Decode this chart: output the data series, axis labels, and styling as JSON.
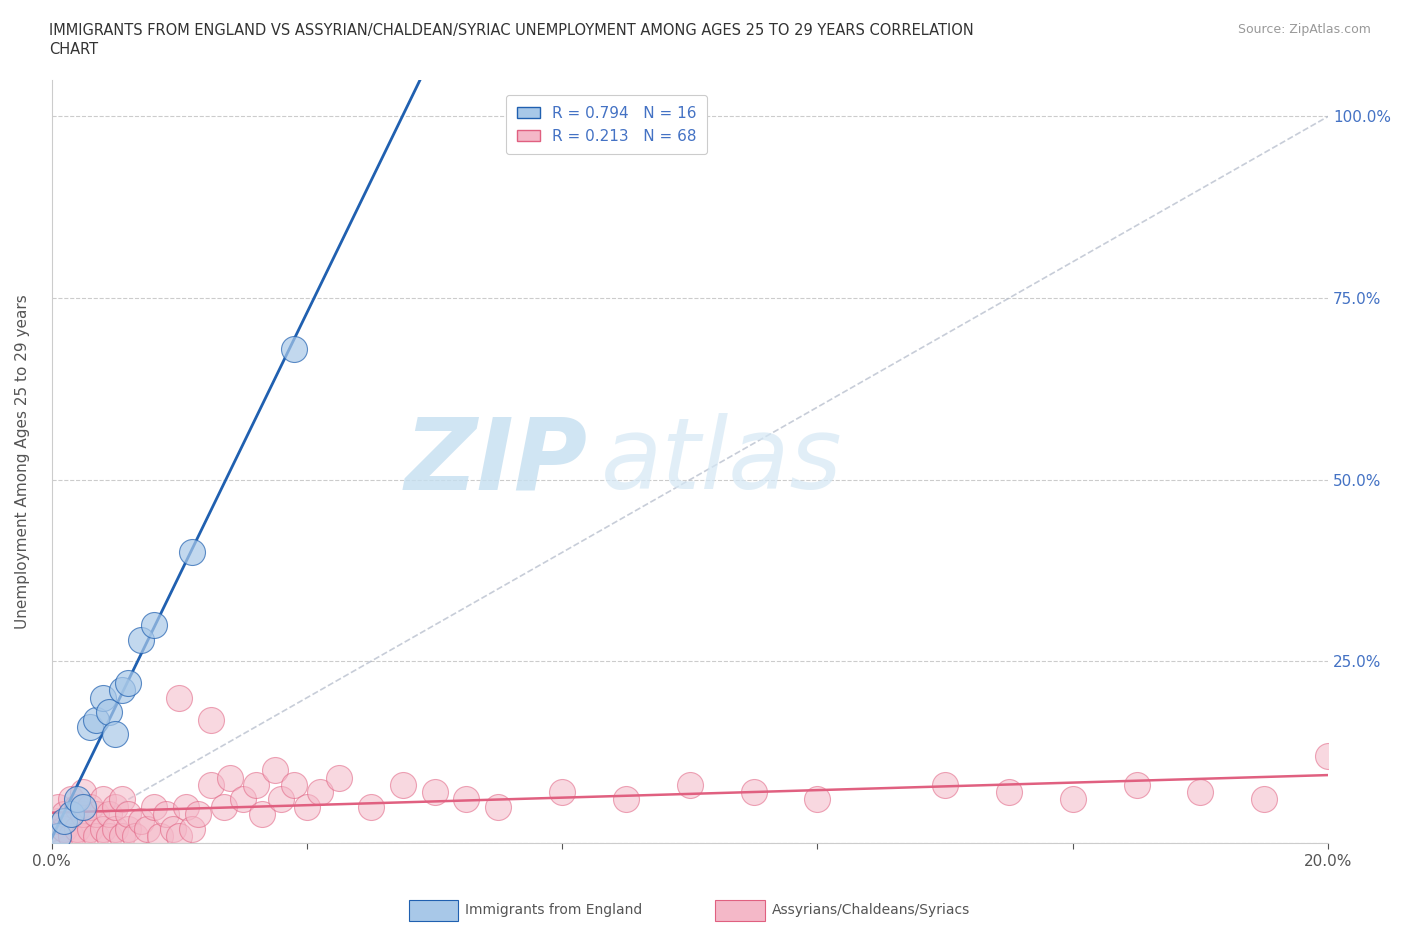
{
  "title_line1": "IMMIGRANTS FROM ENGLAND VS ASSYRIAN/CHALDEAN/SYRIAC UNEMPLOYMENT AMONG AGES 25 TO 29 YEARS CORRELATION",
  "title_line2": "CHART",
  "source": "Source: ZipAtlas.com",
  "ylabel": "Unemployment Among Ages 25 to 29 years",
  "xlim": [
    0.0,
    0.2
  ],
  "ylim": [
    0.0,
    1.05
  ],
  "color_england": "#a8c8e8",
  "color_assyrian": "#f4b8c8",
  "color_england_line": "#2060b0",
  "color_assyrian_line": "#e06080",
  "color_diag": "#b0b8c8",
  "watermark_zip": "ZIP",
  "watermark_atlas": "atlas",
  "england_x": [
    0.001,
    0.002,
    0.003,
    0.004,
    0.005,
    0.006,
    0.007,
    0.008,
    0.009,
    0.01,
    0.011,
    0.012,
    0.014,
    0.016,
    0.022,
    0.038
  ],
  "england_y": [
    0.01,
    0.03,
    0.04,
    0.06,
    0.05,
    0.16,
    0.17,
    0.2,
    0.18,
    0.15,
    0.21,
    0.22,
    0.28,
    0.3,
    0.4,
    0.68
  ],
  "assyrian_x": [
    0.001,
    0.001,
    0.001,
    0.002,
    0.002,
    0.003,
    0.003,
    0.004,
    0.004,
    0.005,
    0.005,
    0.005,
    0.006,
    0.006,
    0.007,
    0.007,
    0.008,
    0.008,
    0.009,
    0.009,
    0.01,
    0.01,
    0.011,
    0.011,
    0.012,
    0.012,
    0.013,
    0.014,
    0.015,
    0.016,
    0.017,
    0.018,
    0.019,
    0.02,
    0.02,
    0.021,
    0.022,
    0.023,
    0.025,
    0.025,
    0.027,
    0.028,
    0.03,
    0.032,
    0.033,
    0.035,
    0.036,
    0.038,
    0.04,
    0.042,
    0.045,
    0.05,
    0.055,
    0.06,
    0.065,
    0.07,
    0.08,
    0.09,
    0.1,
    0.11,
    0.12,
    0.14,
    0.15,
    0.16,
    0.17,
    0.18,
    0.19,
    0.2
  ],
  "assyrian_y": [
    0.01,
    0.03,
    0.05,
    0.02,
    0.04,
    0.01,
    0.06,
    0.02,
    0.05,
    0.01,
    0.04,
    0.07,
    0.02,
    0.05,
    0.01,
    0.04,
    0.02,
    0.06,
    0.01,
    0.04,
    0.02,
    0.05,
    0.01,
    0.06,
    0.02,
    0.04,
    0.01,
    0.03,
    0.02,
    0.05,
    0.01,
    0.04,
    0.02,
    0.01,
    0.2,
    0.05,
    0.02,
    0.04,
    0.17,
    0.08,
    0.05,
    0.09,
    0.06,
    0.08,
    0.04,
    0.1,
    0.06,
    0.08,
    0.05,
    0.07,
    0.09,
    0.05,
    0.08,
    0.07,
    0.06,
    0.05,
    0.07,
    0.06,
    0.08,
    0.07,
    0.06,
    0.08,
    0.07,
    0.06,
    0.08,
    0.07,
    0.06,
    0.12
  ]
}
